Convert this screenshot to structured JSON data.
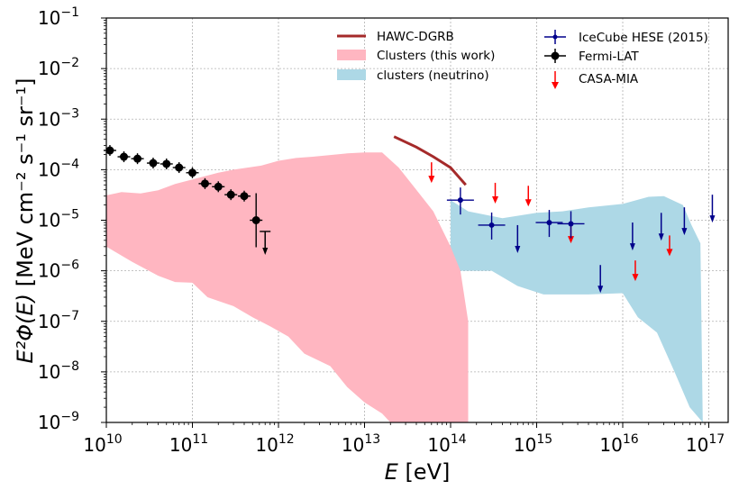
{
  "chart_data": {
    "type": "scatter",
    "xscale": "log",
    "yscale": "log",
    "xlim": [
      10000000000.0,
      2e+17
    ],
    "ylim": [
      1e-09,
      0.1
    ],
    "grid": true,
    "xlabel": {
      "main": "E",
      "unit": "[eV]"
    },
    "ylabel": {
      "main": "E²Φ(E)",
      "unit": "[MeV cm⁻² s⁻¹ sr⁻¹]"
    },
    "x_tick_exponents": [
      "10",
      "11",
      "12",
      "13",
      "14",
      "15",
      "16",
      "17"
    ],
    "y_tick_exponents": [
      "−9",
      "−8",
      "−7",
      "−6",
      "−5",
      "−4",
      "−3",
      "−2",
      "−1"
    ],
    "tick_base": "10",
    "legend_position": "top-right",
    "legend": {
      "hawc": "HAWC-DGRB",
      "clusters_this_work": "Clusters (this work)",
      "clusters_neutrino": "clusters (neutrino)",
      "icecube": "IceCube HESE (2015)",
      "fermi": "Fermi-LAT",
      "casa": "CASA-MIA"
    },
    "colors": {
      "hawc": "#a52a2a",
      "clusters_this_work": "#ffb6c1",
      "clusters_neutrino": "#add8e6",
      "icecube": "#00008b",
      "fermi": "#000000",
      "casa": "#ff0000"
    },
    "series": {
      "clusters_this_work_band": {
        "upper": [
          [
            10000000000.0,
            3.1e-05
          ],
          [
            15000000000.0,
            3.6e-05
          ],
          [
            25000000000.0,
            3.4e-05
          ],
          [
            40000000000.0,
            3.9e-05
          ],
          [
            63000000000.0,
            5.2e-05
          ],
          [
            100000000000.0,
            6.4e-05
          ],
          [
            200000000000.0,
            8.7e-05
          ],
          [
            300000000000.0,
            0.0001
          ],
          [
            630000000000.0,
            0.00012
          ],
          [
            1000000000000.0,
            0.00015
          ],
          [
            1600000000000.0,
            0.00017
          ],
          [
            2500000000000.0,
            0.00018
          ],
          [
            6300000000000.0,
            0.00021
          ],
          [
            10000000000000.0,
            0.00022
          ],
          [
            16000000000000.0,
            0.00022
          ],
          [
            25000000000000.0,
            0.00011
          ],
          [
            40000000000000.0,
            4e-05
          ],
          [
            63000000000000.0,
            1.5e-05
          ],
          [
            100000000000000.0,
            3e-06
          ],
          [
            130000000000000.0,
            1e-06
          ],
          [
            160000000000000.0,
            1e-07
          ],
          [
            160000000000000.0,
            1e-09
          ]
        ],
        "lower": [
          [
            10000000000.0,
            3e-06
          ],
          [
            20000000000.0,
            1.5e-06
          ],
          [
            40000000000.0,
            8e-07
          ],
          [
            63000000000.0,
            6e-07
          ],
          [
            100000000000.0,
            5.8e-07
          ],
          [
            150000000000.0,
            3e-07
          ],
          [
            300000000000.0,
            2e-07
          ],
          [
            500000000000.0,
            1.2e-07
          ],
          [
            800000000000.0,
            8e-08
          ],
          [
            1300000000000.0,
            5e-08
          ],
          [
            2000000000000.0,
            2.3e-08
          ],
          [
            4000000000000.0,
            1.3e-08
          ],
          [
            6300000000000.0,
            5e-09
          ],
          [
            10000000000000.0,
            2.5e-09
          ],
          [
            16000000000000.0,
            1.5e-09
          ],
          [
            20000000000000.0,
            1e-09
          ]
        ]
      },
      "clusters_neutrino_band": {
        "upper": [
          [
            100000000000000.0,
            2.5e-05
          ],
          [
            160000000000000.0,
            1.5e-05
          ],
          [
            400000000000000.0,
            1.1e-05
          ],
          [
            1000000000000000.0,
            1.4e-05
          ],
          [
            2000000000000000.0,
            1.5e-05
          ],
          [
            4000000000000000.0,
            1.8e-05
          ],
          [
            1e+16,
            2.1e-05
          ],
          [
            2e+16,
            2.9e-05
          ],
          [
            3e+16,
            3e-05
          ],
          [
            5e+16,
            2e-05
          ],
          [
            6.3e+16,
            8e-06
          ],
          [
            8e+16,
            3.5e-06
          ]
        ],
        "lower": [
          [
            100000000000000.0,
            1e-06
          ],
          [
            300000000000000.0,
            1e-06
          ],
          [
            600000000000000.0,
            5e-07
          ],
          [
            1200000000000000.0,
            3.4e-07
          ],
          [
            2000000000000000.0,
            3.4e-07
          ],
          [
            4000000000000000.0,
            3.4e-07
          ],
          [
            1e+16,
            3.6e-07
          ],
          [
            1.5e+16,
            1.2e-07
          ],
          [
            2.5e+16,
            6e-08
          ],
          [
            4e+16,
            1e-08
          ],
          [
            6e+16,
            2e-09
          ],
          [
            8.5e+16,
            1e-09
          ]
        ]
      },
      "hawc_dgrb": [
        [
          22000000000000.0,
          0.00045
        ],
        [
          40000000000000.0,
          0.00028
        ],
        [
          63000000000000.0,
          0.00018
        ],
        [
          100000000000000.0,
          0.00011
        ],
        [
          150000000000000.0,
          5e-05
        ]
      ],
      "fermi_lat": {
        "points": [
          [
            11000000000.0,
            0.00024
          ],
          [
            16000000000.0,
            0.00018
          ],
          [
            23000000000.0,
            0.000165
          ],
          [
            35000000000.0,
            0.000135
          ],
          [
            50000000000.0,
            0.00013
          ],
          [
            70000000000.0,
            0.00011
          ],
          [
            100000000000.0,
            8.7e-05
          ],
          [
            140000000000.0,
            5.3e-05
          ],
          [
            200000000000.0,
            4.6e-05
          ],
          [
            280000000000.0,
            3.2e-05
          ],
          [
            400000000000.0,
            3e-05
          ],
          [
            550000000000.0,
            1e-05
          ]
        ],
        "upper_limit": {
          "x": 700000000000.0,
          "y": 6e-06
        }
      },
      "icecube_hese": {
        "points": [
          [
            130000000000000.0,
            2.5e-05
          ],
          [
            300000000000000.0,
            8e-06
          ],
          [
            1400000000000000.0,
            9e-06
          ],
          [
            2500000000000000.0,
            8.5e-06
          ]
        ],
        "upper_limits": [
          [
            600000000000000.0,
            8e-06
          ],
          [
            5500000000000000.0,
            1.3e-06
          ],
          [
            1.3e+16,
            9e-06
          ],
          [
            2.8e+16,
            1.4e-05
          ],
          [
            5.2e+16,
            1.8e-05
          ],
          [
            1.1e+17,
            3.2e-05
          ]
        ]
      },
      "casa_mia_limits": [
        [
          60000000000000.0,
          0.00014
        ],
        [
          330000000000000.0,
          5.5e-05
        ],
        [
          800000000000000.0,
          4.8e-05
        ],
        [
          2500000000000000.0,
          9e-06
        ],
        [
          1.4e+16,
          1.6e-06
        ],
        [
          3.5e+16,
          5e-06
        ]
      ]
    }
  }
}
